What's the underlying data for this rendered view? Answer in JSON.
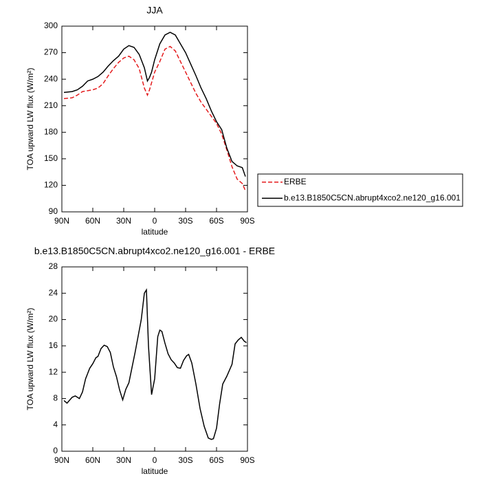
{
  "chart_data": [
    {
      "type": "line",
      "title": "JJA",
      "x_label": "latitude",
      "y_label": "TOA upward LW flux (W/m²)",
      "x": [
        88,
        80,
        75,
        70,
        65,
        60,
        55,
        50,
        45,
        40,
        35,
        30,
        25,
        20,
        15,
        10,
        7,
        5,
        3,
        0,
        -5,
        -10,
        -15,
        -20,
        -25,
        -30,
        -35,
        -40,
        -45,
        -50,
        -55,
        -60,
        -65,
        -70,
        -75,
        -80,
        -85,
        -88
      ],
      "series": [
        {
          "name": "ERBE",
          "color": "#e41a1c",
          "dashed": true,
          "values": [
            218,
            219,
            222,
            226,
            227,
            228,
            230,
            235,
            244,
            252,
            259,
            264,
            266,
            262,
            252,
            230,
            222,
            228,
            236,
            248,
            260,
            274,
            277,
            272,
            260,
            248,
            236,
            224,
            214,
            206,
            198,
            190,
            178,
            160,
            141,
            127,
            122,
            114
          ]
        },
        {
          "name": "b.e13.B1850C5CN.abrupt4xco2.ne120_g16.001",
          "color": "#000000",
          "dashed": false,
          "values": [
            225,
            226,
            228,
            232,
            238,
            240,
            243,
            248,
            255,
            261,
            266,
            274,
            278,
            276,
            268,
            253,
            238,
            242,
            248,
            262,
            280,
            290,
            293,
            290,
            280,
            270,
            257,
            244,
            230,
            218,
            204,
            192,
            183,
            162,
            147,
            142,
            140,
            130
          ]
        }
      ],
      "xlim": [
        90,
        -90
      ],
      "xticks": [
        {
          "value": 90,
          "label": "90N"
        },
        {
          "value": 60,
          "label": "60N"
        },
        {
          "value": 30,
          "label": "30N"
        },
        0,
        {
          "value": -30,
          "label": "30S"
        },
        {
          "value": -60,
          "label": "60S"
        },
        {
          "value": -90,
          "label": "90S"
        }
      ],
      "ylim": [
        90,
        300
      ],
      "yticks": [
        90,
        120,
        150,
        180,
        210,
        240,
        270,
        300
      ],
      "legend": "right"
    },
    {
      "type": "line",
      "title": "b.e13.B1850C5CN.abrupt4xco2.ne120_g16.001 - ERBE",
      "x_label": "latitude",
      "y_label": "TOA upward LW flux (W/m²)",
      "x": [
        88,
        85,
        80,
        77,
        73,
        70,
        67,
        63,
        60,
        57,
        55,
        52,
        49,
        46,
        43,
        40,
        37,
        34,
        31,
        28,
        25,
        22,
        19,
        16,
        13,
        10,
        8,
        6,
        3,
        0,
        -3,
        -5,
        -7,
        -10,
        -13,
        -16,
        -19,
        -22,
        -25,
        -28,
        -31,
        -33,
        -36,
        -40,
        -44,
        -48,
        -52,
        -55,
        -57,
        -60,
        -63,
        -66,
        -70,
        -75,
        -78,
        -81,
        -84,
        -87,
        -89
      ],
      "series": [
        {
          "color": "#000000",
          "dashed": false,
          "values": [
            7.7,
            7.3,
            8.2,
            8.4,
            8.0,
            9,
            11,
            12.6,
            13.3,
            14.2,
            14.4,
            15.6,
            16.1,
            15.9,
            15,
            12.8,
            11.3,
            9.3,
            7.8,
            9.4,
            10.4,
            12.7,
            15,
            17.5,
            20,
            24,
            24.5,
            16,
            8.6,
            11,
            17.4,
            18.4,
            18.2,
            16.4,
            14.8,
            13.9,
            13.4,
            12.7,
            12.6,
            13.8,
            14.5,
            14.7,
            13.4,
            10.2,
            6.5,
            3.8,
            2.0,
            1.8,
            1.9,
            3.5,
            7.2,
            10.2,
            11.4,
            13.2,
            16.3,
            16.9,
            17.3,
            16.7,
            16.5
          ]
        }
      ],
      "xlim": [
        90,
        -90
      ],
      "xticks": [
        {
          "value": 90,
          "label": "90N"
        },
        {
          "value": 60,
          "label": "60N"
        },
        {
          "value": 30,
          "label": "30N"
        },
        0,
        {
          "value": -30,
          "label": "30S"
        },
        {
          "value": -60,
          "label": "60S"
        },
        {
          "value": -90,
          "label": "90S"
        }
      ],
      "ylim": [
        0,
        28
      ],
      "yticks": [
        0,
        4,
        8,
        12,
        16,
        20,
        24,
        28
      ]
    }
  ]
}
